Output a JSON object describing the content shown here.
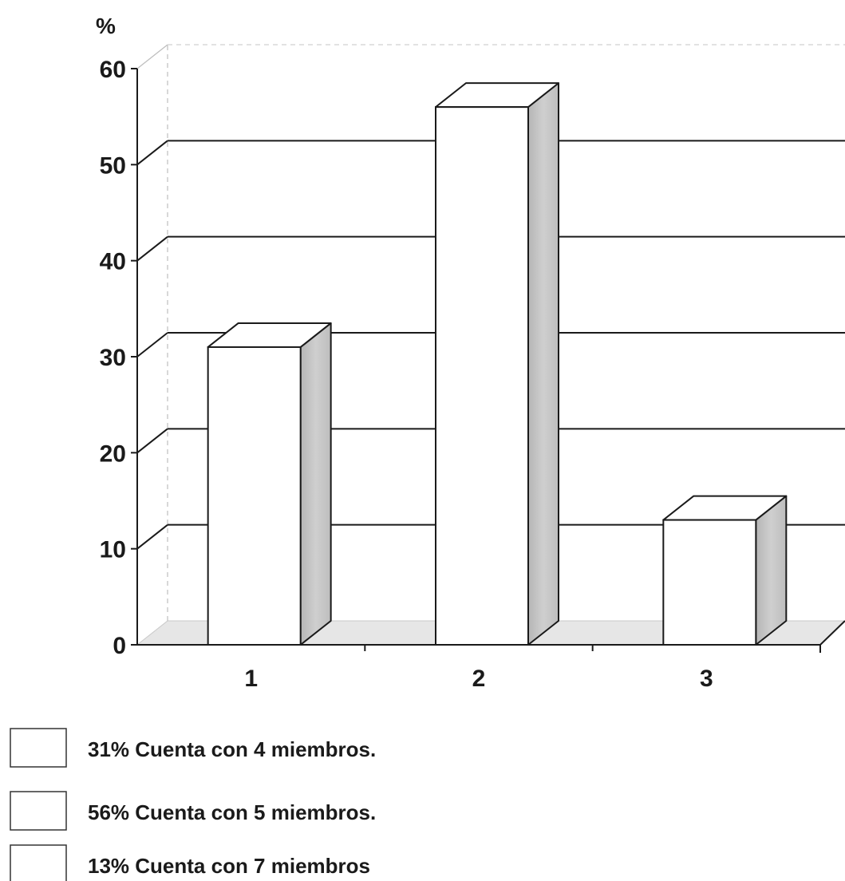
{
  "chart_data": {
    "type": "bar",
    "unit_label": "%",
    "categories": [
      "1",
      "2",
      "3"
    ],
    "values": [
      31,
      56,
      13
    ],
    "ylim": [
      0,
      60
    ],
    "y_ticks": [
      "0",
      "10",
      "20",
      "30",
      "40",
      "50",
      "60"
    ],
    "grid": true,
    "three_d": true,
    "legend_position": "bottom-left",
    "legend": [
      "31% Cuenta con 4 miembros.",
      "56% Cuenta con 5 miembros.",
      "13% Cuenta con 7 miembros"
    ],
    "colors": {
      "bar_front": "#ffffff",
      "bar_side": "#c4c4c4",
      "bar_top": "#ffffff",
      "floor": "#e6e6e6",
      "stroke": "#1a1a1a"
    }
  }
}
